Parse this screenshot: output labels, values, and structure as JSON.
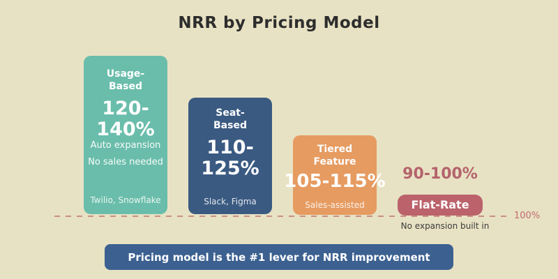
{
  "title": "NRR by Pricing Model",
  "chart_data": {
    "type": "bar",
    "title": "NRR by Pricing Model",
    "unit": "% Net Revenue Retention",
    "baseline": {
      "value": 100,
      "label": "100%"
    },
    "legend": "none",
    "bars": [
      {
        "label": "Usage-Based",
        "value_range": "120-140%",
        "low": 120,
        "high": 140,
        "notes": [
          "Auto expansion",
          "No sales needed"
        ],
        "caption": "Twilio, Snowflake",
        "color": "#6abdab"
      },
      {
        "label": "Seat-Based",
        "value_range": "110-125%",
        "low": 110,
        "high": 125,
        "notes": [],
        "caption": "Slack, Figma",
        "color": "#3a5a81"
      },
      {
        "label": "Tiered Feature",
        "value_range": "105-115%",
        "low": 105,
        "high": 115,
        "notes": [],
        "caption": "Sales-assisted",
        "color": "#e69b61"
      },
      {
        "label": "Flat-Rate",
        "value_range": "90-100%",
        "low": 90,
        "high": 100,
        "notes": [
          "No expansion built in"
        ],
        "caption": "",
        "color": "#bb626b"
      }
    ]
  },
  "colors": {
    "background": "#e8e2c4",
    "baseline_line": "#c98e84",
    "baseline_label": "#bf6b72",
    "flat_rate_value_text": "#b4636c",
    "banner": "#3c6190",
    "title_text": "#2d2d2d"
  },
  "footer_banner": "Pricing model is the #1 lever for NRR improvement"
}
